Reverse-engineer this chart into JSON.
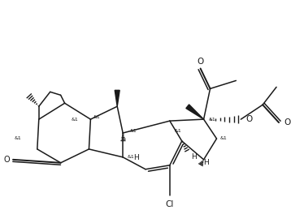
{
  "bg_color": "#ffffff",
  "line_color": "#1a1a1a",
  "lw": 1.1,
  "figsize": [
    3.58,
    2.59
  ],
  "dpi": 100,
  "xlim": [
    0,
    358
  ],
  "ylim": [
    0,
    259
  ]
}
